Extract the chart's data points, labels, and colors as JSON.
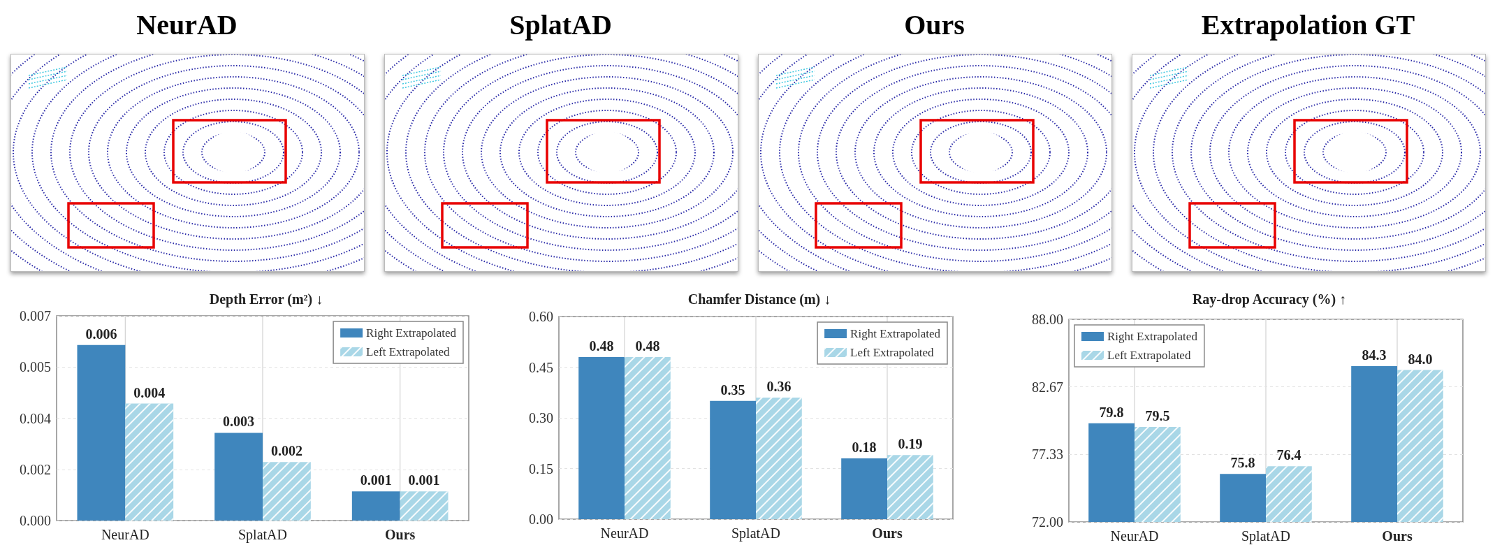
{
  "chart_data": [
    {
      "type": "other",
      "annotations": [
        "NeurAD",
        "SplatAD",
        "Ours",
        "Extrapolation GT"
      ]
    },
    {
      "type": "bar",
      "title": "Depth Error (m²) ↓",
      "categories": [
        "NeurAD",
        "SplatAD",
        "Ours"
      ],
      "series": [
        {
          "name": "Right Extrapolated",
          "color": "#3f86bd",
          "values": [
            0.006,
            0.003,
            0.001
          ]
        },
        {
          "name": "Left Extrapolated",
          "color": "#a9d7e7",
          "values": [
            0.004,
            0.002,
            0.001
          ]
        }
      ],
      "ylim": [
        0,
        0.007
      ],
      "yticks": [
        {
          "value": 0,
          "label": "0.000"
        },
        {
          "value": 0.00175,
          "label": "0.002"
        },
        {
          "value": 0.0035,
          "label": "0.004"
        },
        {
          "value": 0.00525,
          "label": "0.005"
        },
        {
          "value": 0.007,
          "label": "0.007"
        }
      ],
      "grid": true,
      "legend": "top right",
      "data_labels": true
    },
    {
      "type": "bar",
      "title": "Chamfer Distance (m) ↓",
      "categories": [
        "NeurAD",
        "SplatAD",
        "Ours"
      ],
      "series": [
        {
          "name": "Right Extrapolated",
          "color": "#3f86bd",
          "values": [
            0.48,
            0.35,
            0.18
          ]
        },
        {
          "name": "Left Extrapolated",
          "color": "#a9d7e7",
          "values": [
            0.48,
            0.36,
            0.19
          ]
        }
      ],
      "ylim": [
        0,
        0.6
      ],
      "yticks": [
        {
          "value": 0,
          "label": "0.00"
        },
        0.15,
        {
          "value": 0.3,
          "label": "0.30"
        },
        0.45,
        {
          "value": 0.6,
          "label": "0.60"
        }
      ],
      "grid": true,
      "legend": "top right",
      "data_labels": true
    },
    {
      "type": "bar",
      "title": "Ray-drop Accuracy (%) ↑",
      "categories": [
        "NeurAD",
        "SplatAD",
        "Ours"
      ],
      "series": [
        {
          "name": "Right Extrapolated",
          "color": "#3f86bd",
          "values": [
            79.8,
            75.8,
            84.3
          ],
          "value_labels": [
            "79.8",
            "75.8",
            "84.3"
          ]
        },
        {
          "name": "Left Extrapolated",
          "color": "#a9d7e7",
          "values": [
            79.5,
            76.4,
            84.0
          ],
          "value_labels": [
            "79.5",
            "76.4",
            "84.0"
          ]
        }
      ],
      "ylim": [
        72,
        88
      ],
      "yticks": [
        {
          "value": 72,
          "label": "72.00"
        },
        77.33,
        82.67,
        {
          "value": 88,
          "label": "88.00"
        }
      ],
      "grid": true,
      "legend": "top left"
    }
  ]
}
